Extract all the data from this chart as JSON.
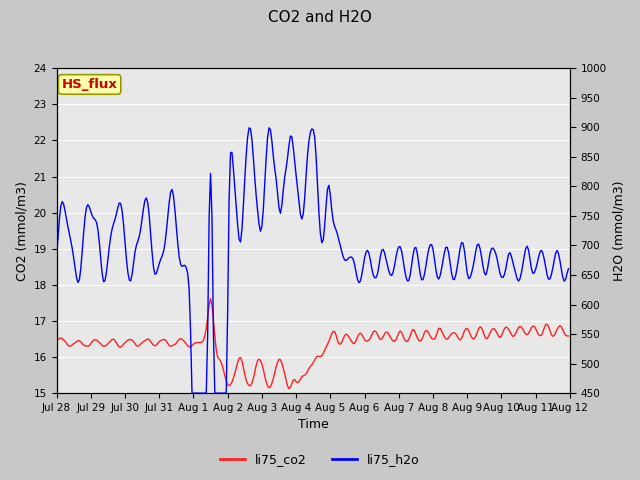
{
  "title": "CO2 and H2O",
  "xlabel": "Time",
  "ylabel_left": "CO2 (mmol/m3)",
  "ylabel_right": "H2O (mmol/m3)",
  "ylim_left": [
    15.0,
    24.0
  ],
  "ylim_right": [
    450,
    1000
  ],
  "yticks_left": [
    15.0,
    16.0,
    17.0,
    18.0,
    19.0,
    20.0,
    21.0,
    22.0,
    23.0,
    24.0
  ],
  "yticks_right": [
    450,
    500,
    550,
    600,
    650,
    700,
    750,
    800,
    850,
    900,
    950,
    1000
  ],
  "xtick_labels": [
    "Jul 28",
    "Jul 29",
    "Jul 30",
    "Jul 31",
    "Aug 1",
    "Aug 2",
    "Aug 3",
    "Aug 4",
    "Aug 5",
    "Aug 6",
    "Aug 7",
    "Aug 8",
    "Aug 9",
    "Aug 10",
    "Aug 11",
    "Aug 12"
  ],
  "color_co2": "#ff2020",
  "color_h2o": "#0000ff",
  "legend_entries": [
    "li75_co2",
    "li75_h2o"
  ],
  "annotation_text": "HS_flux",
  "annotation_color": "#cc0000",
  "annotation_bg": "#ffffaa",
  "annotation_border": "#999900",
  "fig_bg": "#c8c8c8",
  "plot_bg": "#e8e8e8",
  "grid_color": "#ffffff",
  "title_fontsize": 11,
  "axis_fontsize": 9,
  "tick_fontsize": 7.5,
  "legend_fontsize": 9,
  "linewidth": 1.0
}
